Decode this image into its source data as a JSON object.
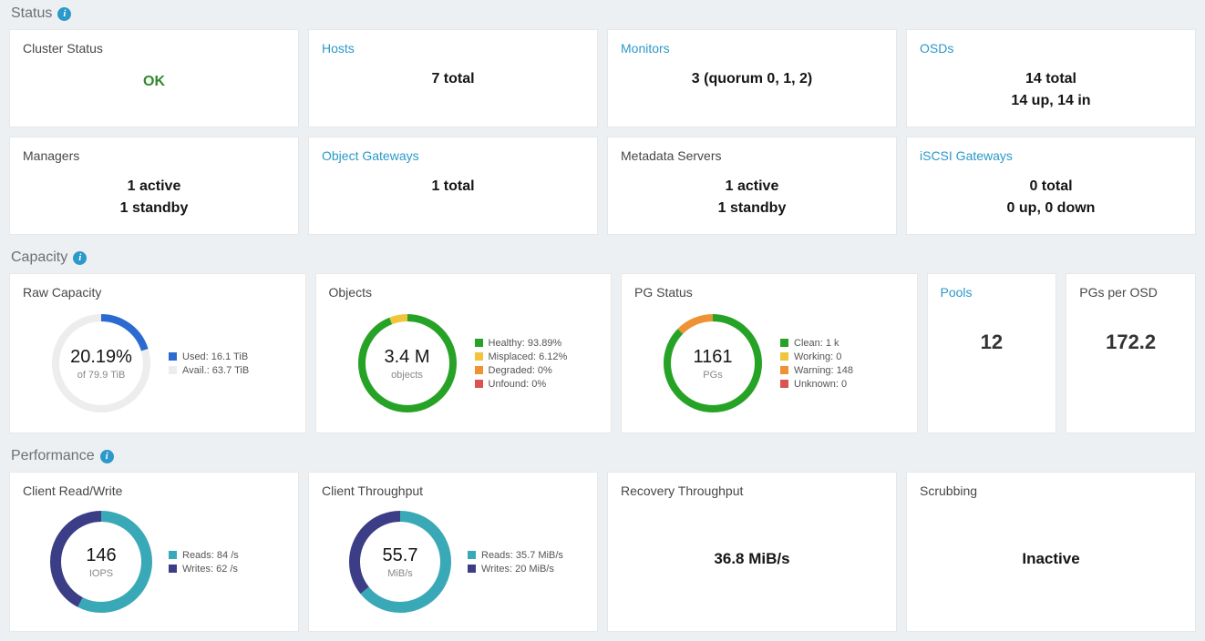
{
  "colors": {
    "link": "#2b99c9",
    "ok": "#2e8b2e",
    "bg": "#edf0f3",
    "track": "#ededed",
    "green": "#26a326",
    "yellow": "#f0c43b",
    "orange": "#ef9234",
    "red": "#d9534f",
    "blue": "#2b6bd1",
    "teal": "#3aa9b7",
    "indigo": "#3b3e87"
  },
  "sections": {
    "status": "Status",
    "capacity": "Capacity",
    "performance": "Performance"
  },
  "status": {
    "cluster": {
      "title": "Cluster Status",
      "value": "OK"
    },
    "hosts": {
      "title": "Hosts",
      "lines": [
        "7 total"
      ]
    },
    "monitors": {
      "title": "Monitors",
      "lines": [
        "3 (quorum 0, 1, 2)"
      ]
    },
    "osds": {
      "title": "OSDs",
      "lines": [
        "14 total",
        "14 up, 14 in"
      ]
    },
    "managers": {
      "title": "Managers",
      "lines": [
        "1 active",
        "1 standby"
      ]
    },
    "objgw": {
      "title": "Object Gateways",
      "lines": [
        "1 total"
      ]
    },
    "mds": {
      "title": "Metadata Servers",
      "lines": [
        "1 active",
        "1 standby"
      ]
    },
    "iscsi": {
      "title": "iSCSI Gateways",
      "lines": [
        "0 total",
        "0 up, 0 down"
      ]
    }
  },
  "capacity": {
    "raw": {
      "title": "Raw Capacity",
      "type": "donut",
      "center_value": "20.19%",
      "center_unit": "of 79.9 TiB",
      "ring_width": 8,
      "segments": [
        {
          "label": "Used: 16.1 TiB",
          "pct": 20.19,
          "color": "#2b6bd1"
        },
        {
          "label": "Avail.: 63.7 TiB",
          "pct": 79.81,
          "color": "#ededed"
        }
      ]
    },
    "objects": {
      "title": "Objects",
      "type": "donut",
      "center_value": "3.4 M",
      "center_unit": "objects",
      "ring_width": 8,
      "segments": [
        {
          "label": "Healthy: 93.89%",
          "pct": 93.89,
          "color": "#26a326"
        },
        {
          "label": "Misplaced: 6.12%",
          "pct": 6.12,
          "color": "#f0c43b"
        },
        {
          "label": "Degraded: 0%",
          "pct": 0,
          "color": "#ef9234"
        },
        {
          "label": "Unfound: 0%",
          "pct": 0,
          "color": "#d9534f"
        }
      ]
    },
    "pg": {
      "title": "PG Status",
      "type": "donut",
      "center_value": "1161",
      "center_unit": "PGs",
      "ring_width": 8,
      "segments": [
        {
          "label": "Clean: 1 k",
          "pct": 87.25,
          "color": "#26a326"
        },
        {
          "label": "Working: 0",
          "pct": 0,
          "color": "#f0c43b"
        },
        {
          "label": "Warning: 148",
          "pct": 12.75,
          "color": "#ef9234"
        },
        {
          "label": "Unknown: 0",
          "pct": 0,
          "color": "#d9534f"
        }
      ]
    },
    "pools": {
      "title": "Pools",
      "value": "12"
    },
    "pgs_osd": {
      "title": "PGs per OSD",
      "value": "172.2"
    }
  },
  "performance": {
    "rw": {
      "title": "Client Read/Write",
      "type": "donut",
      "center_value": "146",
      "center_unit": "IOPS",
      "ring_width": 12,
      "segments": [
        {
          "label": "Reads: 84 /s",
          "pct": 57.53,
          "color": "#3aa9b7"
        },
        {
          "label": "Writes: 62 /s",
          "pct": 42.47,
          "color": "#3b3e87"
        }
      ]
    },
    "tp": {
      "title": "Client Throughput",
      "type": "donut",
      "center_value": "55.7",
      "center_unit": "MiB/s",
      "ring_width": 12,
      "segments": [
        {
          "label": "Reads: 35.7 MiB/s",
          "pct": 64.09,
          "color": "#3aa9b7"
        },
        {
          "label": "Writes: 20 MiB/s",
          "pct": 35.91,
          "color": "#3b3e87"
        }
      ]
    },
    "recovery": {
      "title": "Recovery Throughput",
      "value": "36.8 MiB/s"
    },
    "scrub": {
      "title": "Scrubbing",
      "value": "Inactive"
    }
  }
}
